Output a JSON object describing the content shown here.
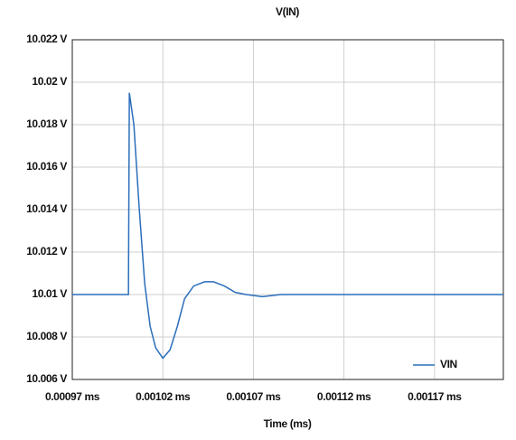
{
  "chart_data": {
    "type": "line",
    "title": "V(IN)",
    "x_label": "Time (ms)",
    "x": [
      0.00097,
      0.001001,
      0.0010015,
      0.001004,
      0.001007,
      0.00101,
      0.001013,
      0.001016,
      0.00102,
      0.001024,
      0.001028,
      0.001032,
      0.001037,
      0.001043,
      0.001048,
      0.001054,
      0.00106,
      0.001066,
      0.001075,
      0.001085,
      0.0011,
      0.001208
    ],
    "series": [
      {
        "name": "VIN",
        "color": "#2a6ebb",
        "values": [
          10.01,
          10.01,
          10.0195,
          10.018,
          10.014,
          10.0105,
          10.0085,
          10.0075,
          10.007,
          10.0074,
          10.0085,
          10.0098,
          10.0104,
          10.0106,
          10.0106,
          10.0104,
          10.0101,
          10.01,
          10.0099,
          10.01,
          10.01,
          10.01
        ]
      }
    ],
    "xlim": [
      0.00097,
      0.001208
    ],
    "ylim": [
      10.006,
      10.022
    ],
    "xticks": [
      {
        "value": 0.00097,
        "label": "0.00097 ms"
      },
      {
        "value": 0.00102,
        "label": "0.00102 ms"
      },
      {
        "value": 0.00107,
        "label": "0.00107 ms"
      },
      {
        "value": 0.00112,
        "label": "0.00112 ms"
      },
      {
        "value": 0.00117,
        "label": "0.00117 ms"
      }
    ],
    "yticks": [
      {
        "value": 10.006,
        "label": "10.006 V"
      },
      {
        "value": 10.008,
        "label": "10.008 V"
      },
      {
        "value": 10.01,
        "label": "10.01 V"
      },
      {
        "value": 10.012,
        "label": "10.012 V"
      },
      {
        "value": 10.014,
        "label": "10.014 V"
      },
      {
        "value": 10.016,
        "label": "10.016 V"
      },
      {
        "value": 10.018,
        "label": "10.018 V"
      },
      {
        "value": 10.02,
        "label": "10.02 V"
      },
      {
        "value": 10.022,
        "label": "10.022 V"
      }
    ],
    "grid": true,
    "legend": "lower right"
  }
}
